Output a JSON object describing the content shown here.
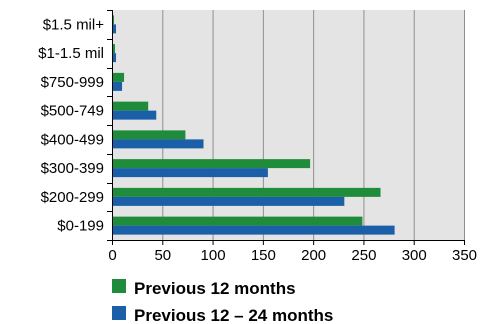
{
  "chart_data": {
    "type": "bar",
    "orientation": "horizontal",
    "categories": [
      "$1.5 mil+",
      "$1-1.5 mil",
      "$750-999",
      "$500-749",
      "$400-499",
      "$300-399",
      "$200-299",
      "$0-199"
    ],
    "series": [
      {
        "name": "Previous 12 months",
        "color": "#1f8c3b",
        "values": [
          2,
          3,
          12,
          36,
          73,
          197,
          267,
          249
        ]
      },
      {
        "name": "Previous 12 – 24 months",
        "color": "#1b5fa8",
        "values": [
          4,
          4,
          10,
          44,
          91,
          155,
          231,
          281
        ]
      }
    ],
    "xlim": [
      0,
      350
    ],
    "xticks": [
      0,
      50,
      100,
      150,
      200,
      250,
      300,
      350
    ],
    "grid": "vertical",
    "plot_background": "#e4e4e4",
    "legend_position": "bottom",
    "title": "",
    "xlabel": "",
    "ylabel": ""
  }
}
